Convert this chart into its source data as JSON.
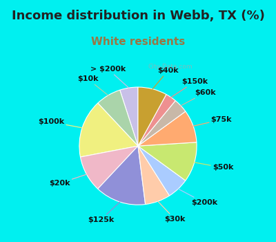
{
  "title": "Income distribution in Webb, TX (%)",
  "subtitle": "White residents",
  "labels": [
    "> $200k",
    "$10k",
    "$100k",
    "$20k",
    "$125k",
    "$30k",
    "$200k",
    "$50k",
    "$75k",
    "$60k",
    "$150k",
    "$40k"
  ],
  "sizes": [
    5,
    7,
    16,
    10,
    14,
    7,
    6,
    11,
    9,
    4,
    3,
    8
  ],
  "colors": [
    "#c8c0e8",
    "#aad4aa",
    "#f0f080",
    "#f0b8c8",
    "#9090d8",
    "#ffccaa",
    "#aaccff",
    "#c8e870",
    "#ffaa70",
    "#c8b8a8",
    "#ee9090",
    "#c8a030"
  ],
  "background_color": "#00f0f0",
  "chart_bg_color": "#d8ede0",
  "title_color": "#222222",
  "subtitle_color": "#997744",
  "title_fontsize": 13,
  "subtitle_fontsize": 11,
  "label_fontsize": 8,
  "watermark": "City-Data.com",
  "startangle": 90,
  "label_dist": 1.32
}
